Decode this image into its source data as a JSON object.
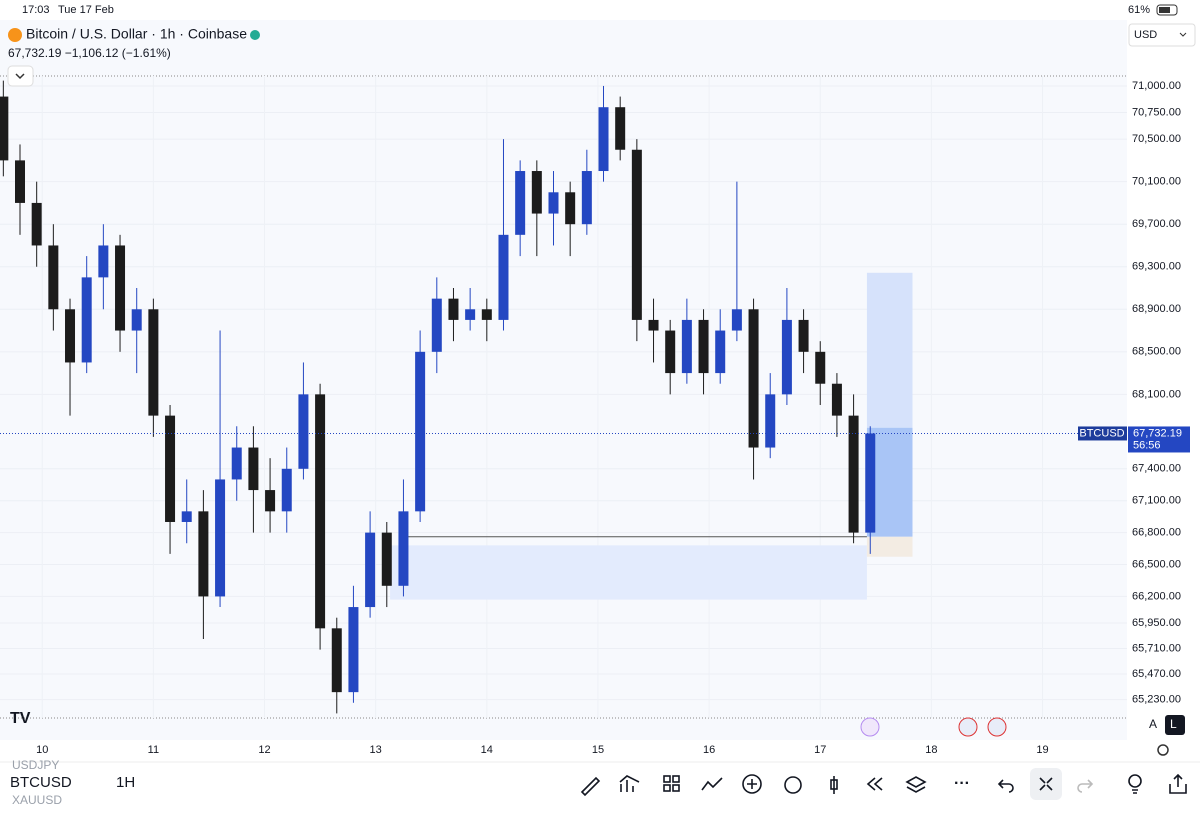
{
  "status_bar": {
    "time": "17:03",
    "date": "Tue 17 Feb",
    "battery": "61%"
  },
  "chart_data": {
    "type": "candlestick",
    "title": "Bitcoin / U.S. Dollar · 1h · Coinbase",
    "subtitle": "67,732.19 −1,106.12 (−1.61%)",
    "currency": "USD",
    "symbol_label": "BTCUSD",
    "last_price_label": "67,732.19",
    "countdown": "56:56",
    "up_color": "#2447c2",
    "down_color": "#1c1c1c",
    "grid": true,
    "x": [
      9.65,
      9.8,
      9.95,
      10.1,
      10.25,
      10.4,
      10.55,
      10.7,
      10.85,
      11,
      11.15,
      11.3,
      11.45,
      11.6,
      11.75,
      11.9,
      12.05,
      12.2,
      12.35,
      12.5,
      12.65,
      12.8,
      12.95,
      13.1,
      13.25,
      13.4,
      13.55,
      13.7,
      13.85,
      14,
      14.15,
      14.3,
      14.45,
      14.6,
      14.75,
      14.9,
      15.05,
      15.2,
      15.35,
      15.5,
      15.65,
      15.8,
      15.95,
      16.1,
      16.25,
      16.4,
      16.55,
      16.7,
      16.85,
      17,
      17.15,
      17.3,
      17.45
    ],
    "open": [
      70900,
      70300,
      69900,
      69500,
      68900,
      68400,
      69200,
      69500,
      68700,
      68900,
      67900,
      66900,
      67000,
      66200,
      67300,
      67600,
      67200,
      67000,
      67400,
      68100,
      65900,
      65300,
      66100,
      66800,
      66300,
      67000,
      68500,
      69000,
      68800,
      68900,
      68800,
      69600,
      70200,
      69800,
      70000,
      69700,
      70200,
      70800,
      70400,
      68800,
      68700,
      68300,
      68800,
      68300,
      68700,
      68900,
      67600,
      68100,
      68800,
      68500,
      68200,
      67900,
      66800
    ],
    "high": [
      71050,
      70450,
      70100,
      69700,
      69000,
      69400,
      69700,
      69600,
      69100,
      69000,
      68000,
      67300,
      67200,
      68700,
      67800,
      67800,
      67500,
      67600,
      68400,
      68200,
      66000,
      66300,
      67000,
      66900,
      67300,
      68700,
      69200,
      69100,
      69100,
      69000,
      70500,
      70300,
      70300,
      70200,
      70100,
      70400,
      71000,
      70900,
      70500,
      69000,
      68800,
      69000,
      68900,
      68900,
      70100,
      69000,
      68300,
      69100,
      68900,
      68600,
      68300,
      68100,
      67800
    ],
    "low": [
      70150,
      69600,
      69300,
      68700,
      67900,
      68300,
      68900,
      68500,
      68300,
      67700,
      66600,
      66700,
      65800,
      66100,
      67100,
      66800,
      66800,
      66800,
      67300,
      65700,
      65100,
      65200,
      66000,
      66100,
      66200,
      66900,
      68300,
      68600,
      68700,
      68600,
      68700,
      69400,
      69400,
      69500,
      69400,
      69600,
      70100,
      70300,
      68600,
      68400,
      68100,
      68200,
      68100,
      68200,
      68600,
      67300,
      67500,
      68000,
      68300,
      68000,
      67700,
      66700,
      66600
    ],
    "close": [
      70300,
      69900,
      69500,
      68900,
      68400,
      69200,
      69500,
      68700,
      68900,
      67900,
      66900,
      67000,
      66200,
      67300,
      67600,
      67200,
      67000,
      67400,
      68100,
      65900,
      65300,
      66100,
      66800,
      66300,
      67000,
      68500,
      69000,
      68800,
      68900,
      68800,
      69600,
      70200,
      69800,
      70000,
      69700,
      70200,
      70800,
      70400,
      68800,
      68700,
      68300,
      68800,
      68300,
      68700,
      68900,
      67600,
      68100,
      68800,
      68500,
      68200,
      67900,
      66800,
      67732.19
    ],
    "xlim": [
      9.62,
      19.76
    ],
    "xticks": [
      10,
      11,
      12,
      13,
      14,
      15,
      16,
      17,
      18,
      19
    ],
    "ylim": [
      64850,
      71620
    ],
    "yticks": [
      {
        "value": 71000,
        "label": "71,000.00"
      },
      {
        "value": 70750,
        "label": "70,750.00"
      },
      {
        "value": 70500,
        "label": "70,500.00"
      },
      {
        "value": 70100,
        "label": "70,100.00"
      },
      {
        "value": 69700,
        "label": "69,700.00"
      },
      {
        "value": 69300,
        "label": "69,300.00"
      },
      {
        "value": 68900,
        "label": "68,900.00"
      },
      {
        "value": 68500,
        "label": "68,500.00"
      },
      {
        "value": 68100,
        "label": "68,100.00"
      },
      {
        "value": 67400,
        "label": "67,400.00"
      },
      {
        "value": 67100,
        "label": "67,100.00"
      },
      {
        "value": 66800,
        "label": "66,800.00"
      },
      {
        "value": 66500,
        "label": "66,500.00"
      },
      {
        "value": 66200,
        "label": "66,200.00"
      },
      {
        "value": 65950,
        "label": "65,950.00"
      },
      {
        "value": 65710,
        "label": "65,710.00"
      },
      {
        "value": 65470,
        "label": "65,470.00"
      },
      {
        "value": 65230,
        "label": "65,230.00"
      }
    ],
    "zones": [
      {
        "x": [
          13.13,
          17.42
        ],
        "y": [
          66170,
          66680
        ],
        "color": "#e3ebfd"
      },
      {
        "x": [
          17.42,
          17.83
        ],
        "y": [
          67786,
          69243
        ],
        "color": "#d6e2fb"
      },
      {
        "x": [
          17.42,
          17.83
        ],
        "y": [
          66761,
          67786
        ],
        "color": "#a9c5f6"
      },
      {
        "x": [
          17.42,
          17.83
        ],
        "y": [
          66573,
          66761
        ],
        "color": "#f3ece3"
      }
    ],
    "lines": [
      {
        "x": [
          13.22,
          17.42
        ],
        "y": 66761,
        "color": "#555555"
      }
    ]
  },
  "toolbar": {
    "symbol": "BTCUSD",
    "interval": "1H",
    "prev_symbol": "USDJPY",
    "next_symbol": "XAUUSD",
    "auto": "A",
    "log": "L"
  }
}
